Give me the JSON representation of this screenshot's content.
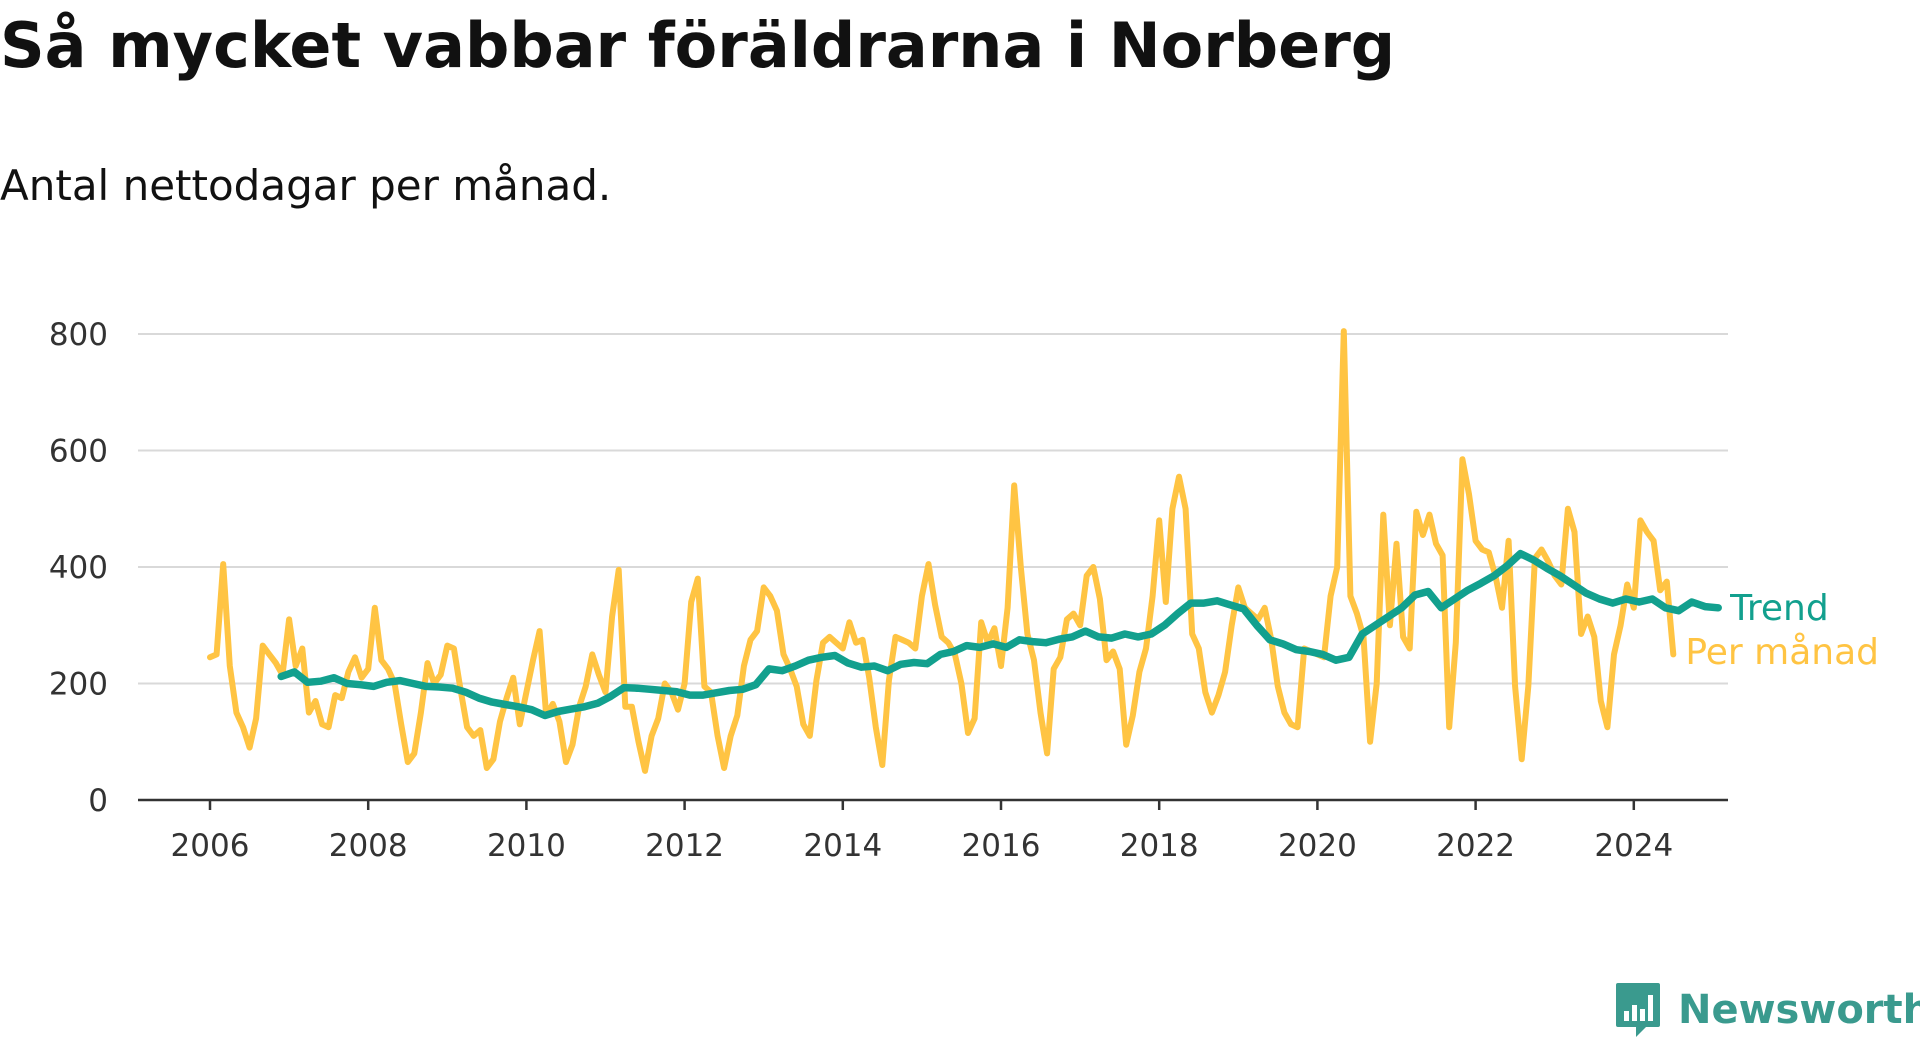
{
  "title": "Så mycket vabbar föräldrarna i Norberg",
  "subtitle": "Antal nettodagar per månad.",
  "brand": {
    "name": "Newsworthy",
    "icon": "newsworthy-logo-icon",
    "color": "#3a9a8e"
  },
  "chart_data": {
    "type": "line",
    "title": "Så mycket vabbar föräldrarna i Norberg",
    "subtitle": "Antal nettodagar per månad.",
    "xlabel": "",
    "ylabel": "",
    "xlim": [
      2006,
      2024.4
    ],
    "ylim": [
      0,
      800
    ],
    "x_ticks": [
      "2006",
      "2008",
      "2010",
      "2012",
      "2014",
      "2016",
      "2018",
      "2020",
      "2022",
      "2024"
    ],
    "y_ticks": [
      "0",
      "200",
      "400",
      "600",
      "800"
    ],
    "grid": "horizontal",
    "legend": "right end labels",
    "series": [
      {
        "name": "Trend",
        "color": "#12a08e",
        "start": 2006.9,
        "step_months": 2,
        "values": [
          212,
          220,
          202,
          204,
          210,
          200,
          198,
          195,
          202,
          205,
          200,
          195,
          194,
          192,
          185,
          175,
          168,
          164,
          160,
          155,
          145,
          152,
          156,
          160,
          166,
          178,
          193,
          192,
          190,
          188,
          186,
          180,
          180,
          184,
          188,
          190,
          198,
          225,
          222,
          230,
          240,
          245,
          248,
          235,
          228,
          230,
          222,
          233,
          236,
          234,
          250,
          255,
          265,
          262,
          268,
          262,
          275,
          272,
          270,
          276,
          280,
          290,
          280,
          278,
          285,
          280,
          285,
          300,
          320,
          338,
          338,
          342,
          335,
          328,
          300,
          275,
          268,
          258,
          255,
          250,
          240,
          245,
          285,
          300,
          315,
          330,
          352,
          358,
          330,
          345,
          360,
          372,
          385,
          402,
          423,
          412,
          398,
          385,
          370,
          355,
          345,
          338,
          345,
          340,
          345,
          330,
          325,
          340,
          332,
          330
        ]
      },
      {
        "name": "Per månad",
        "color": "#ffc443",
        "start": 2006,
        "step_months": 1,
        "values": [
          245,
          250,
          405,
          230,
          150,
          125,
          90,
          140,
          265,
          250,
          235,
          215,
          310,
          230,
          260,
          150,
          170,
          130,
          125,
          180,
          175,
          220,
          245,
          210,
          225,
          330,
          240,
          225,
          200,
          130,
          65,
          80,
          150,
          235,
          200,
          215,
          265,
          260,
          190,
          125,
          110,
          120,
          55,
          70,
          135,
          175,
          210,
          130,
          185,
          240,
          290,
          145,
          165,
          135,
          65,
          95,
          160,
          195,
          250,
          215,
          185,
          315,
          395,
          160,
          160,
          100,
          50,
          110,
          140,
          200,
          185,
          155,
          200,
          340,
          380,
          195,
          185,
          110,
          55,
          110,
          145,
          230,
          275,
          290,
          365,
          350,
          325,
          250,
          225,
          195,
          130,
          110,
          205,
          270,
          280,
          270,
          260,
          305,
          270,
          275,
          210,
          125,
          60,
          205,
          280,
          275,
          270,
          260,
          350,
          405,
          335,
          280,
          270,
          250,
          200,
          115,
          140,
          305,
          270,
          295,
          230,
          330,
          540,
          400,
          285,
          240,
          150,
          80,
          225,
          245,
          310,
          320,
          300,
          385,
          400,
          345,
          240,
          255,
          225,
          95,
          145,
          220,
          260,
          350,
          480,
          340,
          500,
          555,
          500,
          285,
          260,
          185,
          150,
          180,
          220,
          300,
          365,
          330,
          320,
          310,
          330,
          275,
          195,
          150,
          130,
          125,
          260,
          255,
          250,
          245,
          350,
          400,
          805,
          350,
          320,
          280,
          100,
          200,
          490,
          300,
          440,
          280,
          260,
          495,
          455,
          490,
          440,
          420,
          125,
          270,
          585,
          525,
          445,
          430,
          425,
          385,
          330,
          445,
          195,
          70,
          195,
          415,
          430,
          410,
          385,
          370,
          500,
          460,
          285,
          315,
          280,
          170,
          125,
          250,
          300,
          370,
          330,
          480,
          460,
          445,
          360,
          375,
          250
        ]
      }
    ]
  }
}
